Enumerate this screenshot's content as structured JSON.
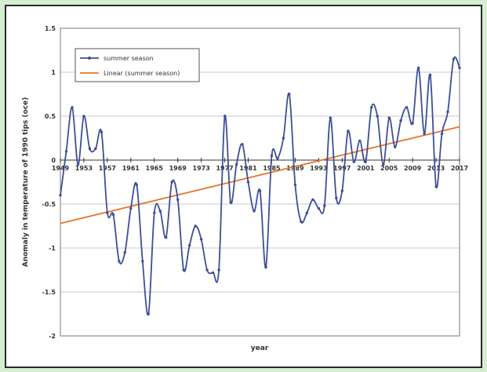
{
  "chart_data": {
    "type": "line",
    "title": "",
    "xlabel": "year",
    "ylabel": "Anomaly in temperature of 1990 tips (oce)",
    "xlim": [
      1949,
      2017
    ],
    "ylim": [
      -2,
      1.5
    ],
    "y_ticks": [
      "1.5",
      "1",
      "0.5",
      "0",
      "-0.5",
      "-1",
      "-1.5",
      "-2"
    ],
    "y_tick_values": [
      1.5,
      1,
      0.5,
      0,
      -0.5,
      -1,
      -1.5,
      -2
    ],
    "x_tick_labels": [
      "1949",
      "1953",
      "1957",
      "1961",
      "1965",
      "1969",
      "1973",
      "1977",
      "1981",
      "1985",
      "1989",
      "1993",
      "1997",
      "2001",
      "2005",
      "2009",
      "2013",
      "2017"
    ],
    "grid": "horizontal",
    "legend": "top-left",
    "legend_entries": [
      "summer season",
      "Linear (summer season)"
    ],
    "colors": {
      "series": "#3d4f96",
      "trend": "#e8742a",
      "plot_bg": "#ffffff",
      "grid": "#c8c8c8",
      "border": "#2a2a2a"
    },
    "series": [
      {
        "name": "summer season",
        "x": [
          1949,
          1950,
          1951,
          1952,
          1953,
          1954,
          1955,
          1956,
          1957,
          1958,
          1959,
          1960,
          1961,
          1962,
          1963,
          1964,
          1965,
          1966,
          1967,
          1968,
          1969,
          1970,
          1971,
          1972,
          1973,
          1974,
          1975,
          1976,
          1977,
          1978,
          1979,
          1980,
          1981,
          1982,
          1983,
          1984,
          1985,
          1986,
          1987,
          1988,
          1989,
          1990,
          1991,
          1992,
          1993,
          1994,
          1995,
          1996,
          1997,
          1998,
          1999,
          2000,
          2001,
          2002,
          2003,
          2004,
          2005,
          2006,
          2007,
          2008,
          2009,
          2010,
          2011,
          2012,
          2013,
          2014,
          2015,
          2016,
          2017
        ],
        "values": [
          -0.4,
          0.1,
          0.6,
          -0.05,
          0.5,
          0.13,
          0.13,
          0.32,
          -0.6,
          -0.62,
          -1.15,
          -1.05,
          -0.55,
          -0.28,
          -1.15,
          -1.75,
          -0.6,
          -0.58,
          -0.88,
          -0.25,
          -0.45,
          -1.25,
          -0.97,
          -0.75,
          -0.9,
          -1.25,
          -1.28,
          -1.25,
          0.5,
          -0.48,
          -0.05,
          0.18,
          -0.25,
          -0.58,
          -0.35,
          -1.22,
          0.05,
          0.02,
          0.25,
          0.75,
          -0.28,
          -0.7,
          -0.6,
          -0.45,
          -0.55,
          -0.52,
          0.48,
          -0.43,
          -0.35,
          0.33,
          -0.02,
          0.22,
          -0.02,
          0.6,
          0.5,
          -0.05,
          0.48,
          0.15,
          0.45,
          0.6,
          0.42,
          1.05,
          0.3,
          0.97,
          -0.3,
          0.3,
          0.55,
          1.15,
          1.05
        ]
      },
      {
        "name": "Linear (summer season)",
        "x": [
          1949,
          2017
        ],
        "values": [
          -0.72,
          0.38
        ]
      }
    ]
  }
}
